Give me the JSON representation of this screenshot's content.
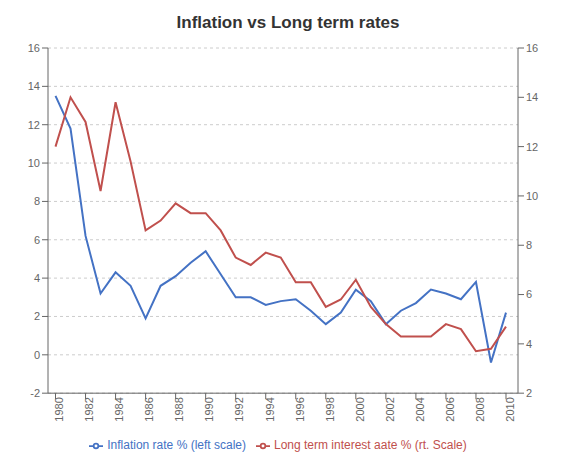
{
  "chart_data": {
    "type": "line",
    "title": "Inflation vs Long term rates",
    "x": [
      1980,
      1981,
      1982,
      1983,
      1984,
      1985,
      1986,
      1987,
      1988,
      1989,
      1990,
      1991,
      1992,
      1993,
      1994,
      1995,
      1996,
      1997,
      1998,
      1999,
      2000,
      2001,
      2002,
      2003,
      2004,
      2005,
      2006,
      2007,
      2008,
      2009,
      2010
    ],
    "xlim": [
      1979.5,
      2010.8
    ],
    "xticks": [
      1980,
      1982,
      1984,
      1986,
      1988,
      1990,
      1992,
      1994,
      1996,
      1998,
      2000,
      2002,
      2004,
      2006,
      2008,
      2010
    ],
    "ylim": [
      -2,
      16
    ],
    "yticks": [
      -2,
      0,
      2,
      4,
      6,
      8,
      10,
      12,
      14,
      16
    ],
    "y2lim": [
      2,
      16
    ],
    "y2ticks": [
      2,
      4,
      6,
      8,
      10,
      12,
      14,
      16
    ],
    "grid": true,
    "legend": "bottom",
    "series": [
      {
        "name": "Inflation rate % (left scale)",
        "color": "#4472C4",
        "values": [
          13.5,
          11.8,
          6.2,
          3.2,
          4.3,
          3.6,
          1.9,
          3.6,
          4.1,
          4.8,
          5.4,
          4.2,
          3.0,
          3.0,
          2.6,
          2.8,
          2.9,
          2.3,
          1.6,
          2.2,
          3.4,
          2.8,
          1.6,
          2.3,
          2.7,
          3.4,
          3.2,
          2.9,
          3.8,
          -0.4,
          2.2
        ]
      },
      {
        "name": "Long term interest aate % (rt. Scale)",
        "color": "#C0504D",
        "axis": "y2",
        "values": [
          12.0,
          14.0,
          13.0,
          10.2,
          13.8,
          11.4,
          8.6,
          9.0,
          9.7,
          9.3,
          9.3,
          8.6,
          7.5,
          7.2,
          7.7,
          7.5,
          6.5,
          6.5,
          5.5,
          5.8,
          6.6,
          5.5,
          4.8,
          4.3,
          4.3,
          4.3,
          4.8,
          4.6,
          3.7,
          3.8,
          4.7
        ]
      }
    ]
  }
}
